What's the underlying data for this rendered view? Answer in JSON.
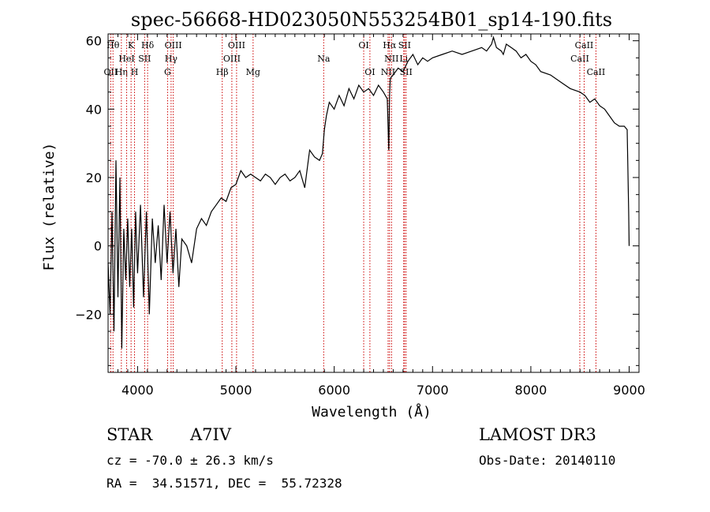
{
  "chart_data": {
    "type": "line",
    "title": "spec-56668-HD023050N553254B01_sp14-190.fits",
    "xlabel": "Wavelength (Å)",
    "ylabel": "Flux (relative)",
    "xlim": [
      3700,
      9100
    ],
    "ylim": [
      -37,
      62
    ],
    "x_ticks": [
      4000,
      5000,
      6000,
      7000,
      8000,
      9000
    ],
    "y_ticks": [
      -20,
      0,
      20,
      40,
      60
    ],
    "grid": false,
    "series": [
      {
        "name": "flux",
        "x": [
          3700,
          3720,
          3740,
          3760,
          3780,
          3800,
          3820,
          3840,
          3860,
          3880,
          3900,
          3920,
          3940,
          3960,
          3980,
          4000,
          4030,
          4060,
          4090,
          4120,
          4150,
          4180,
          4210,
          4240,
          4270,
          4300,
          4330,
          4360,
          4390,
          4420,
          4450,
          4500,
          4550,
          4600,
          4650,
          4700,
          4750,
          4800,
          4850,
          4900,
          4950,
          5000,
          5050,
          5100,
          5150,
          5200,
          5250,
          5300,
          5350,
          5400,
          5450,
          5500,
          5550,
          5600,
          5650,
          5700,
          5750,
          5800,
          5850,
          5880,
          5900,
          5920,
          5950,
          6000,
          6050,
          6100,
          6150,
          6200,
          6250,
          6300,
          6350,
          6400,
          6450,
          6500,
          6540,
          6555,
          6563,
          6570,
          6600,
          6650,
          6700,
          6750,
          6800,
          6850,
          6900,
          6950,
          7000,
          7100,
          7200,
          7300,
          7400,
          7500,
          7550,
          7600,
          7620,
          7650,
          7700,
          7720,
          7750,
          7800,
          7850,
          7900,
          7950,
          8000,
          8050,
          8100,
          8200,
          8300,
          8400,
          8500,
          8550,
          8600,
          8650,
          8700,
          8750,
          8800,
          8850,
          8900,
          8950,
          8980,
          8995,
          9000
        ],
        "y": [
          -5,
          -20,
          10,
          -25,
          25,
          -15,
          20,
          -30,
          5,
          -10,
          8,
          -12,
          5,
          -18,
          10,
          -8,
          12,
          -15,
          10,
          -20,
          8,
          -5,
          6,
          -10,
          12,
          -5,
          10,
          -8,
          5,
          -12,
          2,
          0,
          -5,
          5,
          8,
          6,
          10,
          12,
          14,
          13,
          17,
          18,
          22,
          20,
          21,
          20,
          19,
          21,
          20,
          18,
          20,
          21,
          19,
          20,
          22,
          17,
          28,
          26,
          25,
          27,
          34,
          38,
          42,
          40,
          44,
          41,
          46,
          43,
          47,
          45,
          46,
          44,
          47,
          45,
          43,
          28,
          44,
          49,
          50,
          52,
          51,
          54,
          56,
          53,
          55,
          54,
          55,
          56,
          57,
          56,
          57,
          58,
          57,
          59,
          61,
          58,
          57,
          56,
          59,
          58,
          57,
          55,
          56,
          54,
          53,
          51,
          50,
          48,
          46,
          45,
          44,
          42,
          43,
          41,
          40,
          38,
          36,
          35,
          35,
          34,
          10,
          0
        ]
      }
    ],
    "line_markers": [
      {
        "label": "OII",
        "wavelength": 3727,
        "row": 3
      },
      {
        "label": "Hθ",
        "wavelength": 3750,
        "row": 1
      },
      {
        "label": "Hη",
        "wavelength": 3835,
        "row": 3
      },
      {
        "label": "HeI",
        "wavelength": 3889,
        "row": 2
      },
      {
        "label": "K",
        "wavelength": 3934,
        "row": 1
      },
      {
        "label": "H",
        "wavelength": 3969,
        "row": 3
      },
      {
        "label": "SII",
        "wavelength": 4072,
        "row": 2
      },
      {
        "label": "Hδ",
        "wavelength": 4102,
        "row": 1
      },
      {
        "label": "G",
        "wavelength": 4305,
        "row": 3
      },
      {
        "label": "Hγ",
        "wavelength": 4341,
        "row": 2
      },
      {
        "label": "OIII",
        "wavelength": 4363,
        "row": 1
      },
      {
        "label": "Hβ",
        "wavelength": 4861,
        "row": 3
      },
      {
        "label": "OIII",
        "wavelength": 4959,
        "row": 2
      },
      {
        "label": "OIII",
        "wavelength": 5007,
        "row": 1
      },
      {
        "label": "Mg",
        "wavelength": 5175,
        "row": 3
      },
      {
        "label": "Na",
        "wavelength": 5893,
        "row": 2
      },
      {
        "label": "OI",
        "wavelength": 6300,
        "row": 1
      },
      {
        "label": "OI",
        "wavelength": 6363,
        "row": 3
      },
      {
        "label": "NII",
        "wavelength": 6548,
        "row": 3
      },
      {
        "label": "Hα",
        "wavelength": 6563,
        "row": 1
      },
      {
        "label": "NII",
        "wavelength": 6583,
        "row": 2
      },
      {
        "label": "SII",
        "wavelength": 6716,
        "row": 1
      },
      {
        "label": "Li",
        "wavelength": 6707,
        "row": 2
      },
      {
        "label": "SII",
        "wavelength": 6731,
        "row": 3
      },
      {
        "label": "CaII",
        "wavelength": 8498,
        "row": 2
      },
      {
        "label": "CaII",
        "wavelength": 8542,
        "row": 1
      },
      {
        "label": "CaII",
        "wavelength": 8662,
        "row": 3
      }
    ],
    "line_color": "#000000",
    "marker_color": "#cc0000"
  },
  "footer": {
    "object_class": "STAR",
    "subclass": "A7IV",
    "survey": "LAMOST DR3",
    "cz": "cz = -70.0 ± 26.3 km/s",
    "obs_date": "Obs-Date: 20140110",
    "coords": "RA =  34.51571, DEC =  55.72328"
  }
}
